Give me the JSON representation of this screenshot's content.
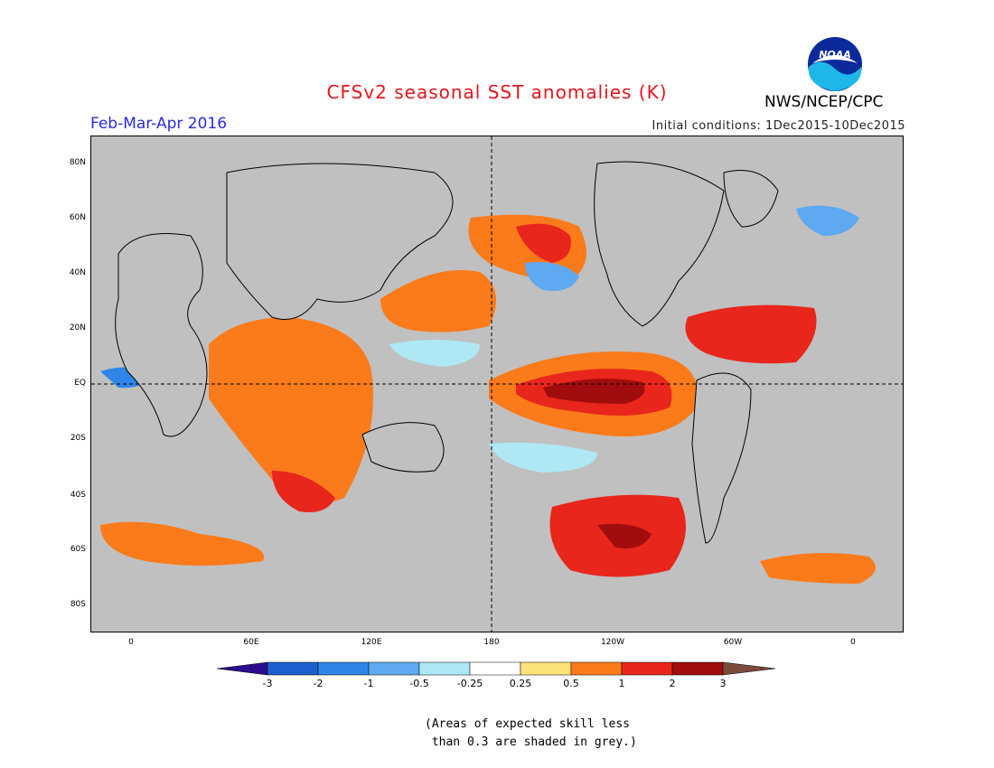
{
  "header": {
    "title": "CFSv2 seasonal SST anomalies (K)",
    "period": "Feb-Mar-Apr 2016",
    "initial_conditions": "Initial conditions: 1Dec2015-10Dec2015",
    "agency": "NWS/NCEP/CPC",
    "logo_text": "NOAA"
  },
  "map": {
    "lat_labels": [
      "80N",
      "60N",
      "40N",
      "20N",
      "EQ",
      "20S",
      "40S",
      "60S",
      "80S"
    ],
    "lon_labels": [
      "0",
      "60E",
      "120E",
      "180",
      "120W",
      "60W",
      "0"
    ],
    "land_color": "#c0c0c0",
    "missing_skill_color": "#c0c0c0"
  },
  "colorbar": {
    "labels": [
      "-3",
      "-2",
      "-1",
      "-0.5",
      "-0.25",
      "0.25",
      "0.5",
      "1",
      "2",
      "3"
    ],
    "colors": [
      "#2a0c8c",
      "#1d5fcf",
      "#2f86e8",
      "#5ea9f0",
      "#aee8f5",
      "#ffffff",
      "#fde27a",
      "#fb7a1a",
      "#e8261c",
      "#a10d0d",
      "#7b4a3a"
    ]
  },
  "note": {
    "line1": "(Areas of expected skill less",
    "line2": " than 0.3 are shaded in grey.)"
  }
}
